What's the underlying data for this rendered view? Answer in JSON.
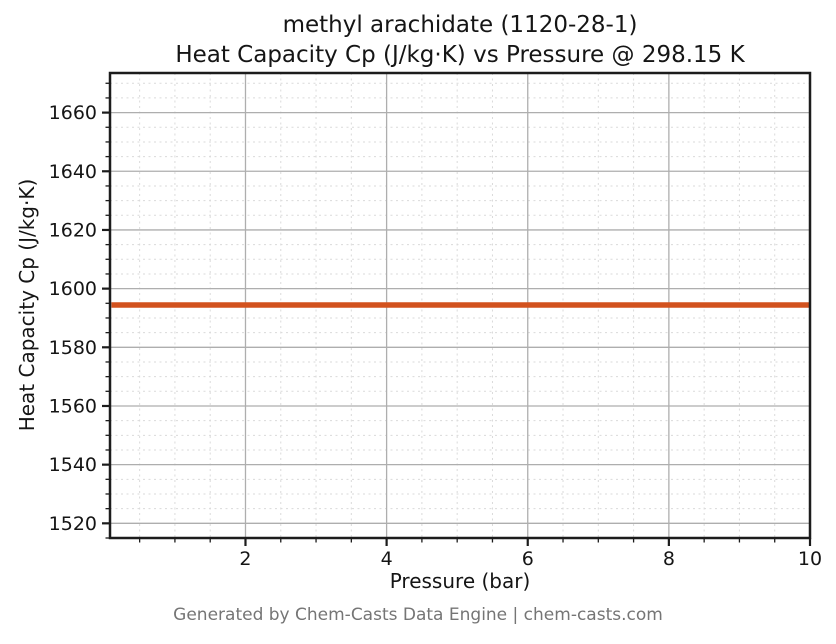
{
  "figure": {
    "kind": "static-chart-figure"
  },
  "colors": {
    "background": "#ffffff",
    "line": "#d2521e",
    "major_grid": "#aeaeae",
    "minor_grid": "#dadada",
    "spine": "#1c1c1c",
    "tick": "#1c1c1c",
    "text": "#151515",
    "footer_text": "#757575"
  },
  "chart_data": {
    "type": "line",
    "title_line1": "methyl arachidate (1120-28-1)",
    "title_line2": "Heat Capacity Cp (J/kg·K) vs Pressure @ 298.15 K",
    "title": "methyl arachidate (1120-28-1) Heat Capacity Cp (J/kg·K) vs Pressure @ 298.15 K",
    "xlabel": "Pressure (bar)",
    "ylabel": "Heat Capacity Cp (J/kg·K)",
    "footer": "Generated by Chem-Casts Data Engine | chem-casts.com",
    "xlim": [
      0.08,
      10
    ],
    "ylim": [
      1515,
      1673.5
    ],
    "x_major_ticks": [
      2,
      4,
      6,
      8,
      10
    ],
    "x_minor_step": 0.5,
    "y_major_ticks": [
      1520,
      1540,
      1560,
      1580,
      1600,
      1620,
      1640,
      1660
    ],
    "y_minor_step": 5,
    "grid": {
      "major": true,
      "minor": true
    },
    "legend": "none",
    "series": [
      {
        "name": "Heat Capacity Cp",
        "color": "#d2521e",
        "line_width": 5.5,
        "x": [
          0.1,
          1,
          2,
          3,
          4,
          5,
          6,
          7,
          8,
          9,
          10
        ],
        "y": [
          1594.4,
          1594.4,
          1594.4,
          1594.4,
          1594.4,
          1594.4,
          1594.4,
          1594.4,
          1594.4,
          1594.4,
          1594.4
        ]
      }
    ]
  }
}
